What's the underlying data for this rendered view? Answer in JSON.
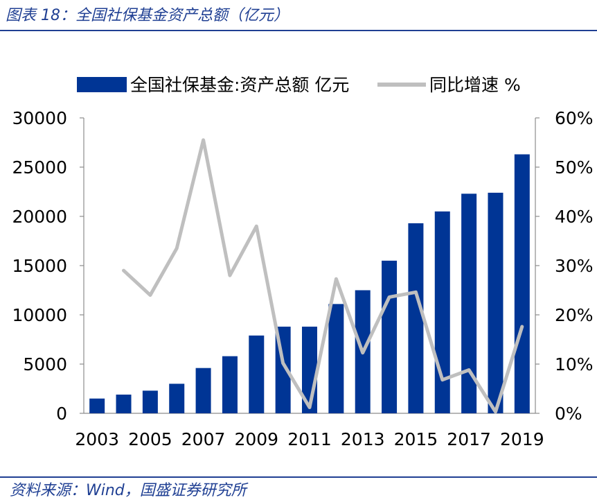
{
  "header": {
    "title": "图表 18：全国社保基金资产总额（亿元）"
  },
  "footer": {
    "source": "资料来源：Wind，国盛证券研究所"
  },
  "colors": {
    "bar": "#003595",
    "line": "#bfbfbf",
    "accent": "#1f3f93"
  },
  "chart_data": {
    "type": "bar",
    "categories": [
      "2003",
      "2004",
      "2005",
      "2006",
      "2007",
      "2008",
      "2009",
      "2010",
      "2011",
      "2012",
      "2013",
      "2014",
      "2015",
      "2016",
      "2017",
      "2018",
      "2019"
    ],
    "x_tick_labels": [
      "2003",
      "2005",
      "2007",
      "2009",
      "2011",
      "2013",
      "2015",
      "2017",
      "2019"
    ],
    "series": [
      {
        "name": "全国社保基金:资产总额 亿元",
        "type": "bar",
        "axis": "left",
        "values": [
          1500,
          1900,
          2300,
          3000,
          4600,
          5800,
          7900,
          8800,
          8800,
          11100,
          12500,
          15500,
          19300,
          20500,
          22300,
          22400,
          26300
        ]
      },
      {
        "name": "同比增速 %",
        "type": "line",
        "axis": "right",
        "values": [
          null,
          29,
          24,
          33.5,
          55.5,
          28,
          38,
          10.2,
          1.2,
          27.3,
          12.3,
          23.6,
          24.6,
          6.8,
          8.8,
          0.3,
          17.6
        ]
      }
    ],
    "y_left": {
      "min": 0,
      "max": 30000,
      "ticks": [
        "0",
        "5000",
        "10000",
        "15000",
        "20000",
        "25000",
        "30000"
      ]
    },
    "y_right": {
      "min": 0,
      "max": 60,
      "ticks": [
        "0%",
        "10%",
        "20%",
        "30%",
        "40%",
        "50%",
        "60%"
      ]
    },
    "legend_position": "top",
    "grid": false
  }
}
